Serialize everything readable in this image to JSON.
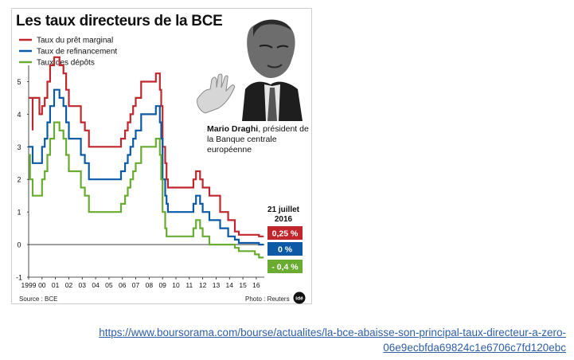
{
  "title": "Les taux directeurs de la BCE",
  "caption": {
    "name": "Mario Draghi",
    "text": ", président de la Banque centrale européenne"
  },
  "date_label": "21 juillet 2016",
  "value_badges": [
    {
      "text": "0,25 %",
      "color": "#c0272d"
    },
    {
      "text": "0 %",
      "color": "#0c5aa6"
    },
    {
      "text": "- 0,4 %",
      "color": "#6aab32"
    }
  ],
  "source": "Source : BCE",
  "photo_credit": "Photo : Reuters",
  "link": {
    "line1": "https://www.boursorama.com/bourse/actualites/la-bce-abaisse-son-principal-taux-directeur-a-zero-",
    "line2": "06e9ecbfda69824c1e6706c7fd120ebc"
  },
  "chart_data": {
    "type": "line",
    "title": "Les taux directeurs de la BCE",
    "ylim": [
      -1,
      5.5
    ],
    "xlim": [
      1999,
      2016.6
    ],
    "yticks": [
      "-1",
      "0",
      "1",
      "2",
      "3",
      "4",
      "5"
    ],
    "xticks": [
      "1999",
      "00",
      "01",
      "02",
      "03",
      "04",
      "05",
      "06",
      "07",
      "08",
      "09",
      "10",
      "11",
      "12",
      "13",
      "14",
      "15",
      "16"
    ],
    "grid": false,
    "legend": "top-left",
    "series": [
      {
        "name": "Taux du prêt marginal",
        "color": "#c0272d",
        "points": [
          [
            1999.0,
            4.5
          ],
          [
            1999.3,
            3.5
          ],
          [
            1999.3,
            4.5
          ],
          [
            1999.8,
            4.0
          ],
          [
            2000.0,
            4.25
          ],
          [
            2000.2,
            4.5
          ],
          [
            2000.4,
            5.0
          ],
          [
            2000.6,
            5.5
          ],
          [
            2000.9,
            5.75
          ],
          [
            2001.3,
            5.5
          ],
          [
            2001.6,
            5.25
          ],
          [
            2001.8,
            4.75
          ],
          [
            2002.0,
            4.25
          ],
          [
            2002.9,
            3.75
          ],
          [
            2003.2,
            3.5
          ],
          [
            2003.5,
            3.0
          ],
          [
            2005.9,
            3.25
          ],
          [
            2006.2,
            3.5
          ],
          [
            2006.4,
            3.75
          ],
          [
            2006.6,
            4.0
          ],
          [
            2006.8,
            4.25
          ],
          [
            2007.0,
            4.5
          ],
          [
            2007.4,
            5.0
          ],
          [
            2008.5,
            5.25
          ],
          [
            2008.8,
            4.75
          ],
          [
            2008.9,
            4.25
          ],
          [
            2009.0,
            3.0
          ],
          [
            2009.2,
            2.5
          ],
          [
            2009.3,
            2.0
          ],
          [
            2009.4,
            1.75
          ],
          [
            2011.3,
            2.0
          ],
          [
            2011.5,
            2.25
          ],
          [
            2011.8,
            2.0
          ],
          [
            2012.0,
            1.75
          ],
          [
            2012.5,
            1.5
          ],
          [
            2013.3,
            1.0
          ],
          [
            2013.9,
            0.75
          ],
          [
            2014.4,
            0.4
          ],
          [
            2014.7,
            0.3
          ],
          [
            2016.2,
            0.25
          ],
          [
            2016.55,
            0.25
          ]
        ]
      },
      {
        "name": "Taux de refinancement",
        "color": "#0c5aa6",
        "points": [
          [
            1999.0,
            3.0
          ],
          [
            1999.3,
            2.5
          ],
          [
            2000.0,
            3.0
          ],
          [
            2000.2,
            3.25
          ],
          [
            2000.4,
            3.75
          ],
          [
            2000.6,
            4.25
          ],
          [
            2000.9,
            4.75
          ],
          [
            2001.3,
            4.5
          ],
          [
            2001.6,
            4.25
          ],
          [
            2001.8,
            3.75
          ],
          [
            2002.0,
            3.25
          ],
          [
            2002.9,
            2.75
          ],
          [
            2003.2,
            2.5
          ],
          [
            2003.5,
            2.0
          ],
          [
            2005.9,
            2.25
          ],
          [
            2006.2,
            2.5
          ],
          [
            2006.4,
            2.75
          ],
          [
            2006.6,
            3.0
          ],
          [
            2006.8,
            3.25
          ],
          [
            2007.0,
            3.5
          ],
          [
            2007.4,
            4.0
          ],
          [
            2008.5,
            4.25
          ],
          [
            2008.8,
            3.75
          ],
          [
            2008.9,
            3.25
          ],
          [
            2009.0,
            2.0
          ],
          [
            2009.2,
            1.5
          ],
          [
            2009.3,
            1.25
          ],
          [
            2009.4,
            1.0
          ],
          [
            2011.3,
            1.25
          ],
          [
            2011.5,
            1.5
          ],
          [
            2011.8,
            1.25
          ],
          [
            2012.0,
            1.0
          ],
          [
            2012.5,
            0.75
          ],
          [
            2013.3,
            0.5
          ],
          [
            2013.9,
            0.25
          ],
          [
            2014.4,
            0.15
          ],
          [
            2014.7,
            0.05
          ],
          [
            2016.2,
            0.0
          ],
          [
            2016.55,
            0.0
          ]
        ]
      },
      {
        "name": "Taux des dépôts",
        "color": "#6aab32",
        "points": [
          [
            1999.0,
            2.75
          ],
          [
            1999.1,
            2.0
          ],
          [
            1999.3,
            1.5
          ],
          [
            2000.0,
            2.0
          ],
          [
            2000.2,
            2.25
          ],
          [
            2000.4,
            2.75
          ],
          [
            2000.6,
            3.25
          ],
          [
            2000.9,
            3.75
          ],
          [
            2001.3,
            3.5
          ],
          [
            2001.6,
            3.25
          ],
          [
            2001.8,
            2.75
          ],
          [
            2002.0,
            2.25
          ],
          [
            2002.9,
            1.75
          ],
          [
            2003.2,
            1.5
          ],
          [
            2003.5,
            1.0
          ],
          [
            2005.9,
            1.25
          ],
          [
            2006.2,
            1.5
          ],
          [
            2006.4,
            1.75
          ],
          [
            2006.6,
            2.0
          ],
          [
            2006.8,
            2.25
          ],
          [
            2007.0,
            2.5
          ],
          [
            2007.4,
            3.0
          ],
          [
            2008.5,
            3.25
          ],
          [
            2008.8,
            2.75
          ],
          [
            2008.9,
            2.0
          ],
          [
            2009.0,
            1.0
          ],
          [
            2009.2,
            0.5
          ],
          [
            2009.3,
            0.25
          ],
          [
            2011.3,
            0.5
          ],
          [
            2011.5,
            0.75
          ],
          [
            2011.8,
            0.5
          ],
          [
            2012.0,
            0.25
          ],
          [
            2012.5,
            0.0
          ],
          [
            2014.4,
            -0.1
          ],
          [
            2014.7,
            -0.2
          ],
          [
            2015.9,
            -0.3
          ],
          [
            2016.2,
            -0.4
          ],
          [
            2016.55,
            -0.4
          ]
        ]
      }
    ]
  }
}
